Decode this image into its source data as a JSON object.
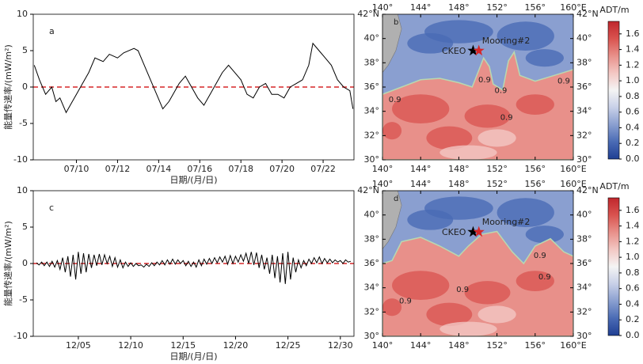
{
  "chart_data": [
    {
      "type": "line",
      "label": "a",
      "xlabel": "日期/(月/日)",
      "ylabel": "能量传递率/(mW/m²)",
      "color": "#000000",
      "x": [
        7.95,
        8.2,
        8.5,
        8.8,
        9.0,
        9.2,
        9.5,
        9.8,
        10.0,
        10.3,
        10.6,
        10.9,
        11.3,
        11.6,
        12.0,
        12.3,
        12.8,
        13.0,
        13.3,
        13.6,
        13.9,
        14.2,
        14.5,
        14.8,
        15.0,
        15.3,
        15.6,
        15.9,
        16.2,
        16.5,
        16.8,
        17.1,
        17.4,
        17.7,
        18.0,
        18.3,
        18.6,
        18.9,
        19.2,
        19.5,
        19.8,
        20.1,
        20.4,
        20.7,
        21.0,
        21.3,
        21.5,
        21.8,
        22.1,
        22.4,
        22.7,
        23.0,
        23.3,
        23.45
      ],
      "values": [
        3,
        1,
        -1,
        0,
        -2,
        -1.5,
        -3.5,
        -2,
        -1,
        0.5,
        2,
        4,
        3.5,
        4.5,
        4,
        4.7,
        5.3,
        5,
        3,
        1,
        -1,
        -3,
        -2,
        -0.5,
        0.5,
        1.5,
        0,
        -1.5,
        -2.5,
        -1,
        0.5,
        2,
        3,
        2,
        1,
        -1,
        -1.5,
        0,
        0.5,
        -1,
        -1,
        -1.5,
        0,
        0.5,
        1,
        3,
        6,
        5,
        4,
        3,
        1,
        0,
        -0.5,
        -3
      ],
      "xlim": [
        7.9,
        23.5
      ],
      "xticks": [
        {
          "value": 10,
          "label": "07/10"
        },
        {
          "value": 12,
          "label": "07/12"
        },
        {
          "value": 14,
          "label": "07/14"
        },
        {
          "value": 16,
          "label": "07/16"
        },
        {
          "value": 18,
          "label": "07/18"
        },
        {
          "value": 20,
          "label": "07/20"
        },
        {
          "value": 22,
          "label": "07/22"
        }
      ],
      "ylim": [
        -10,
        10
      ],
      "yticks": [
        -10,
        -5,
        0,
        5,
        10
      ],
      "hline": {
        "value": 0,
        "color": "#d62728"
      }
    },
    {
      "type": "map",
      "label": "b",
      "colorbar_label": "ADT/m",
      "xlim": [
        140,
        160
      ],
      "ylim": [
        30,
        42
      ],
      "xticks": [
        {
          "value": 140,
          "label": "140°"
        },
        {
          "value": 144,
          "label": "144°"
        },
        {
          "value": 148,
          "label": "148°"
        },
        {
          "value": 152,
          "label": "152°"
        },
        {
          "value": 156,
          "label": "156°"
        },
        {
          "value": 160,
          "label": "160°E"
        }
      ],
      "yticks": [
        {
          "value": 30,
          "label": "30°"
        },
        {
          "value": 32,
          "label": "32°"
        },
        {
          "value": 34,
          "label": "34°"
        },
        {
          "value": 36,
          "label": "36°"
        },
        {
          "value": 38,
          "label": "38°"
        },
        {
          "value": 40,
          "label": "40°"
        },
        {
          "value": 42,
          "label": "42°N"
        }
      ],
      "clim": [
        0,
        1.76
      ],
      "cticks": [
        {
          "value": 0,
          "label": "0.0"
        },
        0.2,
        0.4,
        0.6,
        0.8,
        {
          "value": 1,
          "label": "1.0"
        },
        1.2,
        1.4,
        1.6
      ],
      "colormap": [
        "#1f3f93",
        "#4a6bb5",
        "#8a9fd0",
        "#c8d0e8",
        "#f4f4f4",
        "#f3c7c3",
        "#e8908a",
        "#d9534f",
        "#c0272d"
      ],
      "stations": [
        {
          "name": "CKEO",
          "lon": 149.5,
          "lat": 39.0,
          "color": "#000000"
        },
        {
          "name": "Mooring#2",
          "lon": 150.1,
          "lat": 39.0,
          "color": "#d62728"
        }
      ],
      "contour_labels": [
        {
          "text": "0.9",
          "lon": 141.3,
          "lat": 34.95
        },
        {
          "text": "0.9",
          "lon": 150.7,
          "lat": 36.6
        },
        {
          "text": "0.9",
          "lon": 152.4,
          "lat": 35.7
        },
        {
          "text": "0.9",
          "lon": 159.0,
          "lat": 36.5
        },
        {
          "text": "0.9",
          "lon": 153.0,
          "lat": 33.5
        }
      ]
    },
    {
      "type": "line",
      "label": "c",
      "xlabel": "日期/(月/日)",
      "ylabel": "能量传递率/(mW/m²)",
      "color": "#000000",
      "x": [
        1,
        1.25,
        1.5,
        1.75,
        2,
        2.25,
        2.5,
        2.75,
        3,
        3.25,
        3.5,
        3.75,
        4,
        4.25,
        4.5,
        4.75,
        5,
        5.25,
        5.5,
        5.75,
        6,
        6.25,
        6.5,
        6.75,
        7,
        7.25,
        7.5,
        7.75,
        8,
        8.25,
        8.5,
        8.75,
        9,
        9.25,
        9.5,
        9.75,
        10,
        10.25,
        10.5,
        10.75,
        11,
        11.25,
        11.5,
        11.75,
        12,
        12.25,
        12.5,
        12.75,
        13,
        13.25,
        13.5,
        13.75,
        14,
        14.25,
        14.5,
        14.75,
        15,
        15.25,
        15.5,
        15.75,
        16,
        16.25,
        16.5,
        16.75,
        17,
        17.25,
        17.5,
        17.75,
        18,
        18.25,
        18.5,
        18.75,
        19,
        19.25,
        19.5,
        19.75,
        20,
        20.25,
        20.5,
        20.75,
        21,
        21.25,
        21.5,
        21.75,
        22,
        22.25,
        22.5,
        22.75,
        23,
        23.25,
        23.5,
        23.75,
        24,
        24.25,
        24.5,
        24.75,
        25,
        25.25,
        25.5,
        25.75,
        26,
        26.25,
        26.5,
        26.75,
        27,
        27.25,
        27.5,
        27.75,
        28,
        28.25,
        28.5,
        28.75,
        29,
        29.25,
        29.5,
        29.75,
        30,
        30.25,
        30.5,
        30.75,
        31
      ],
      "values": [
        0.1,
        -0.2,
        0.2,
        -0.3,
        0.2,
        -0.4,
        0.3,
        -0.5,
        0.4,
        -0.8,
        0.8,
        -1.2,
        1.0,
        -1.8,
        1.2,
        -2.2,
        1.6,
        -1.4,
        1.4,
        -1.2,
        1.3,
        -0.6,
        1.2,
        -0.3,
        1.3,
        -0.2,
        1.2,
        0.0,
        1.0,
        -0.4,
        0.8,
        -0.5,
        0.5,
        -0.6,
        0.2,
        -0.4,
        0.1,
        -0.4,
        0.0,
        -0.3,
        -0.2,
        -0.5,
        -0.1,
        -0.4,
        0.1,
        -0.3,
        0.2,
        -0.2,
        0.4,
        -0.2,
        0.5,
        -0.1,
        0.6,
        -0.1,
        0.5,
        0.0,
        0.4,
        -0.3,
        0.3,
        -0.4,
        0.2,
        -0.5,
        0.5,
        -0.3,
        0.6,
        -0.1,
        0.7,
        0.0,
        0.8,
        0.1,
        0.9,
        0.2,
        1.0,
        -0.1,
        1.1,
        0.0,
        1.0,
        0.2,
        1.2,
        0.3,
        1.4,
        0.0,
        1.6,
        -0.2,
        1.5,
        -0.6,
        1.2,
        -0.8,
        0.8,
        -1.4,
        1.2,
        -2.0,
        1.0,
        -2.6,
        1.4,
        -2.8,
        1.6,
        -2.2,
        0.8,
        -1.2,
        0.5,
        -0.6,
        0.4,
        -0.3,
        0.6,
        0.0,
        0.8,
        0.1,
        0.9,
        0.0,
        0.7,
        0.1,
        0.6,
        0.1,
        0.5,
        0.2,
        0.4,
        0.0,
        0.5,
        0.2,
        0.3
      ],
      "xlim": [
        0.7,
        31.3
      ],
      "xticks": [
        {
          "value": 5,
          "label": "12/05"
        },
        {
          "value": 10,
          "label": "12/10"
        },
        {
          "value": 15,
          "label": "12/15"
        },
        {
          "value": 20,
          "label": "12/20"
        },
        {
          "value": 25,
          "label": "12/25"
        },
        {
          "value": 30,
          "label": "12/30"
        }
      ],
      "ylim": [
        -10,
        10
      ],
      "yticks": [
        -10,
        -5,
        0,
        5,
        10
      ],
      "hline": {
        "value": 0,
        "color": "#d62728"
      }
    },
    {
      "type": "map",
      "label": "d",
      "colorbar_label": "ADT/m",
      "xlim": [
        140,
        160
      ],
      "ylim": [
        30,
        42
      ],
      "xticks": [
        {
          "value": 140,
          "label": "140°"
        },
        {
          "value": 144,
          "label": "144°"
        },
        {
          "value": 148,
          "label": "148°"
        },
        {
          "value": 152,
          "label": "152°"
        },
        {
          "value": 156,
          "label": "156°"
        },
        {
          "value": 160,
          "label": "160°E"
        }
      ],
      "yticks": [
        {
          "value": 30,
          "label": "30°"
        },
        {
          "value": 32,
          "label": "32°"
        },
        {
          "value": 34,
          "label": "34°"
        },
        {
          "value": 36,
          "label": "36°"
        },
        {
          "value": 38,
          "label": "38°"
        },
        {
          "value": 40,
          "label": "40°"
        },
        {
          "value": 42,
          "label": "42°N"
        }
      ],
      "clim": [
        0,
        1.76
      ],
      "cticks": [
        {
          "value": 0,
          "label": "0.0"
        },
        0.2,
        0.4,
        0.6,
        0.8,
        {
          "value": 1,
          "label": "1.0"
        },
        1.2,
        1.4,
        1.6
      ],
      "colormap": [
        "#1f3f93",
        "#4a6bb5",
        "#8a9fd0",
        "#c8d0e8",
        "#f4f4f4",
        "#f3c7c3",
        "#e8908a",
        "#d9534f",
        "#c0272d"
      ],
      "stations": [
        {
          "name": "CKEO",
          "lon": 149.5,
          "lat": 38.6,
          "color": "#000000"
        },
        {
          "name": "Mooring#2",
          "lon": 150.1,
          "lat": 38.6,
          "color": "#d62728"
        }
      ],
      "contour_labels": [
        {
          "text": "0.9",
          "lon": 142.4,
          "lat": 32.9
        },
        {
          "text": "0.9",
          "lon": 148.4,
          "lat": 33.85
        },
        {
          "text": "0.9",
          "lon": 156.5,
          "lat": 36.65
        },
        {
          "text": "0.9",
          "lon": 157.0,
          "lat": 34.9
        }
      ]
    }
  ]
}
